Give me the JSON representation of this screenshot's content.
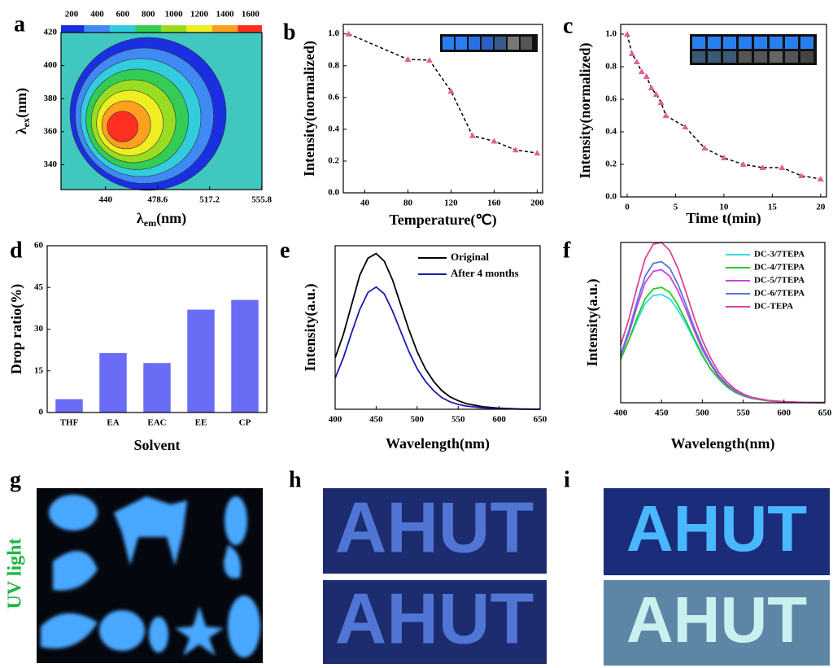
{
  "chart_data": [
    {
      "type": "contour",
      "label": "a",
      "xlabel": [
        "λ",
        "em",
        "(nm)"
      ],
      "ylabel": [
        "λ",
        "ex",
        "(nm)"
      ],
      "xlim": [
        407,
        556
      ],
      "xticks": [
        440,
        478.6,
        517.2,
        555.8
      ],
      "ylim": [
        325,
        420
      ],
      "yticks": [
        340,
        360,
        380,
        400,
        420
      ],
      "clim": [
        117,
        1690
      ],
      "cticks": [
        200,
        400,
        600,
        800,
        1000,
        1200,
        1400,
        1600
      ],
      "colors": [
        "#1a30e0",
        "#3f8af5",
        "#33ccdd",
        "#33cc55",
        "#99dd22",
        "#eeee22",
        "#ffa020",
        "#ff3020"
      ],
      "background": "#40c8c0",
      "peak": {
        "x": 450,
        "y": 362
      }
    },
    {
      "type": "scatter",
      "label": "b",
      "xlabel": "Temperature(℃)",
      "ylabel": "Intensity(normalized)",
      "x": [
        25,
        80,
        100,
        120,
        140,
        160,
        180,
        200
      ],
      "values": [
        1.0,
        0.84,
        0.835,
        0.64,
        0.36,
        0.325,
        0.27,
        0.25
      ],
      "color": "#e0609a",
      "line": "dashed",
      "xlim": [
        20,
        205
      ],
      "xticks": [
        40,
        80,
        120,
        160,
        200
      ],
      "ylim": [
        0,
        1.06
      ],
      "yticks": [
        {
          "value": 0,
          "label": "0.0"
        },
        0.2,
        0.4,
        0.6,
        0.8,
        {
          "value": 1,
          "label": "1.0"
        }
      ]
    },
    {
      "type": "scatter",
      "label": "c",
      "xlabel": "Time t(min)",
      "ylabel": "Intensity(normalized)",
      "x": [
        0,
        0.5,
        1,
        1.5,
        2,
        2.5,
        3,
        3.5,
        4,
        6,
        8,
        10,
        12,
        14,
        16,
        18,
        20
      ],
      "values": [
        1.0,
        0.88,
        0.83,
        0.77,
        0.74,
        0.67,
        0.63,
        0.58,
        0.5,
        0.43,
        0.3,
        0.24,
        0.2,
        0.18,
        0.18,
        0.13,
        0.11
      ],
      "color": "#e0609a",
      "line": "dashed",
      "xlim": [
        -0.67,
        20.6
      ],
      "xticks": [
        0,
        5,
        10,
        15,
        20
      ],
      "ylim": [
        0,
        1.06
      ],
      "yticks": [
        {
          "value": 0,
          "label": "0.0"
        },
        0.2,
        0.4,
        0.6,
        0.8,
        {
          "value": 1,
          "label": "1.0"
        }
      ]
    },
    {
      "type": "bar",
      "label": "d",
      "xlabel": "Solvent",
      "ylabel": "Drop ratio(%)",
      "categories": [
        "THF",
        "EA",
        "EAC",
        "EE",
        "CP"
      ],
      "values": [
        4.8,
        21.4,
        17.8,
        37,
        40.5
      ],
      "color": "#6b6cf5",
      "ylim": [
        0,
        60
      ],
      "yticks": [
        0,
        15,
        30,
        45,
        60
      ]
    },
    {
      "type": "line",
      "label": "e",
      "xlabel": "Wavelength(nm)",
      "ylabel": "Intensity(a.u.)",
      "x": [
        400,
        410,
        420,
        430,
        440,
        450,
        460,
        470,
        480,
        490,
        500,
        510,
        520,
        530,
        540,
        550,
        560,
        580,
        600,
        625,
        650
      ],
      "series": [
        {
          "name": "Original",
          "color": "#000000",
          "values": [
            0.33,
            0.48,
            0.67,
            0.86,
            0.97,
            1.0,
            0.95,
            0.83,
            0.67,
            0.51,
            0.37,
            0.26,
            0.18,
            0.12,
            0.08,
            0.055,
            0.036,
            0.016,
            0.007,
            0.002,
            0
          ]
        },
        {
          "name": "After 4 months",
          "color": "#1a1ab0",
          "values": [
            0.2,
            0.33,
            0.49,
            0.64,
            0.75,
            0.785,
            0.74,
            0.63,
            0.5,
            0.37,
            0.26,
            0.18,
            0.12,
            0.075,
            0.048,
            0.031,
            0.02,
            0.009,
            0.004,
            0.001,
            0
          ]
        }
      ],
      "xlim": [
        400,
        650
      ],
      "xticks": [
        400,
        450,
        500,
        550,
        600,
        650
      ],
      "ylim": [
        0,
        1.05
      ],
      "legend": "top-right"
    },
    {
      "type": "line",
      "label": "f",
      "xlabel": "Wavelength(nm)",
      "ylabel": "Intensity(a.u.)",
      "x": [
        400,
        410,
        420,
        430,
        440,
        450,
        460,
        470,
        480,
        490,
        500,
        510,
        520,
        530,
        540,
        550,
        560,
        580,
        600,
        625,
        650
      ],
      "series": [
        {
          "name": "DC-3/7TEPA",
          "color": "#33dde6",
          "values": [
            0.28,
            0.39,
            0.51,
            0.62,
            0.67,
            0.675,
            0.65,
            0.58,
            0.49,
            0.39,
            0.29,
            0.21,
            0.15,
            0.1,
            0.065,
            0.043,
            0.028,
            0.012,
            0.005,
            0.002,
            0.001
          ]
        },
        {
          "name": "DC-4/7TEPA",
          "color": "#22cc22",
          "values": [
            0.27,
            0.39,
            0.53,
            0.65,
            0.71,
            0.72,
            0.69,
            0.61,
            0.51,
            0.4,
            0.3,
            0.21,
            0.15,
            0.1,
            0.065,
            0.043,
            0.028,
            0.012,
            0.005,
            0.002,
            0.001
          ]
        },
        {
          "name": "DC-5/7TEPA",
          "color": "#cc44dd",
          "values": [
            0.29,
            0.43,
            0.6,
            0.75,
            0.82,
            0.83,
            0.79,
            0.7,
            0.58,
            0.45,
            0.33,
            0.24,
            0.16,
            0.11,
            0.072,
            0.048,
            0.03,
            0.013,
            0.006,
            0.002,
            0.001
          ]
        },
        {
          "name": "DC-6/7TEPA",
          "color": "#5577dd",
          "values": [
            0.3,
            0.45,
            0.63,
            0.79,
            0.87,
            0.88,
            0.84,
            0.74,
            0.61,
            0.47,
            0.35,
            0.25,
            0.17,
            0.115,
            0.075,
            0.05,
            0.032,
            0.014,
            0.006,
            0.002,
            0.001
          ]
        },
        {
          "name": "DC-TEPA",
          "color": "#dd4499",
          "values": [
            0.36,
            0.52,
            0.72,
            0.9,
            0.99,
            1.0,
            0.95,
            0.84,
            0.69,
            0.53,
            0.39,
            0.28,
            0.19,
            0.13,
            0.085,
            0.055,
            0.035,
            0.015,
            0.007,
            0.002,
            0.001
          ]
        }
      ],
      "xlim": [
        400,
        650
      ],
      "xticks": [
        400,
        450,
        500,
        550,
        600,
        650
      ],
      "ylim": [
        0,
        1.0
      ],
      "legend": "top-right"
    }
  ],
  "photos": [
    {
      "label": "g",
      "caption": "UV light"
    },
    {
      "label": "h",
      "text": "AHUT"
    },
    {
      "label": "i",
      "text": "AHUT"
    }
  ]
}
